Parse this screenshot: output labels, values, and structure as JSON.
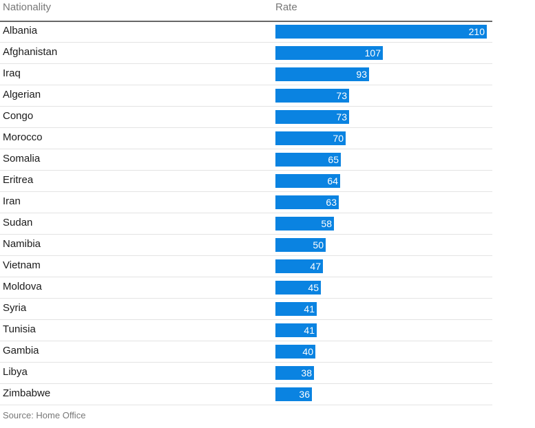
{
  "chart_data": {
    "type": "bar",
    "orientation": "horizontal",
    "column_headers": {
      "category": "Nationality",
      "value": "Rate"
    },
    "categories": [
      "Albania",
      "Afghanistan",
      "Iraq",
      "Algerian",
      "Congo",
      "Morocco",
      "Somalia",
      "Eritrea",
      "Iran",
      "Sudan",
      "Namibia",
      "Vietnam",
      "Moldova",
      "Syria",
      "Tunisia",
      "Gambia",
      "Libya",
      "Zimbabwe"
    ],
    "values": [
      210,
      107,
      93,
      73,
      73,
      70,
      65,
      64,
      63,
      58,
      50,
      47,
      45,
      41,
      41,
      40,
      38,
      36
    ],
    "xlim": [
      0,
      210
    ],
    "bar_color": "#0a83e1",
    "grid": false,
    "source": "Source: Home Office"
  }
}
